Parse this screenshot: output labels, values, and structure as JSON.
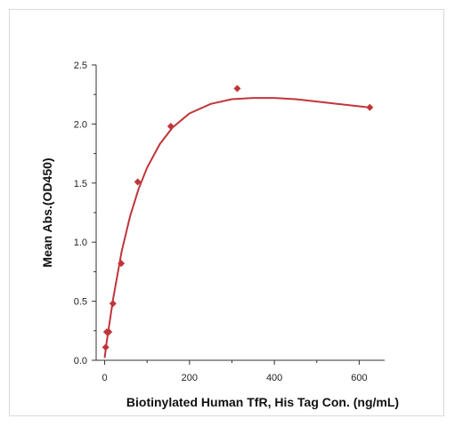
{
  "chart_data": {
    "type": "scatter",
    "title": "",
    "xlabel": "Biotinylated Human TfR, His Tag Con. (ng/mL)",
    "ylabel": "Mean Abs.(OD450)",
    "xlim": [
      -20,
      660
    ],
    "ylim": [
      0,
      2.5
    ],
    "x_ticks": [
      0,
      200,
      400,
      600
    ],
    "y_ticks": [
      0.0,
      0.5,
      1.0,
      1.5,
      2.0,
      2.5
    ],
    "x_tick_labels": [
      "0",
      "200",
      "400",
      "600"
    ],
    "y_tick_labels": [
      "0.0",
      "0.5",
      "1.0",
      "1.5",
      "2.0",
      "2.5"
    ],
    "grid": false,
    "series": [
      {
        "points": [
          {
            "x": 2.4,
            "y": 0.11
          },
          {
            "x": 4.9,
            "y": 0.24
          },
          {
            "x": 9.8,
            "y": 0.24
          },
          {
            "x": 19.5,
            "y": 0.48
          },
          {
            "x": 39,
            "y": 0.82
          },
          {
            "x": 78,
            "y": 1.51
          },
          {
            "x": 156,
            "y": 1.98
          },
          {
            "x": 312.5,
            "y": 2.3
          },
          {
            "x": 625,
            "y": 2.14
          }
        ],
        "fit_curve": [
          [
            0,
            0.02
          ],
          [
            5,
            0.16
          ],
          [
            10,
            0.28
          ],
          [
            20,
            0.52
          ],
          [
            40,
            0.92
          ],
          [
            60,
            1.22
          ],
          [
            80,
            1.45
          ],
          [
            100,
            1.63
          ],
          [
            130,
            1.83
          ],
          [
            160,
            1.97
          ],
          [
            200,
            2.09
          ],
          [
            250,
            2.17
          ],
          [
            300,
            2.21
          ],
          [
            350,
            2.22
          ],
          [
            400,
            2.22
          ],
          [
            450,
            2.21
          ],
          [
            500,
            2.19
          ],
          [
            550,
            2.17
          ],
          [
            600,
            2.15
          ],
          [
            625,
            2.14
          ]
        ]
      }
    ],
    "colors": {
      "marker": "#c0353a",
      "curve": "#c0353a",
      "axis": "#333333"
    }
  }
}
